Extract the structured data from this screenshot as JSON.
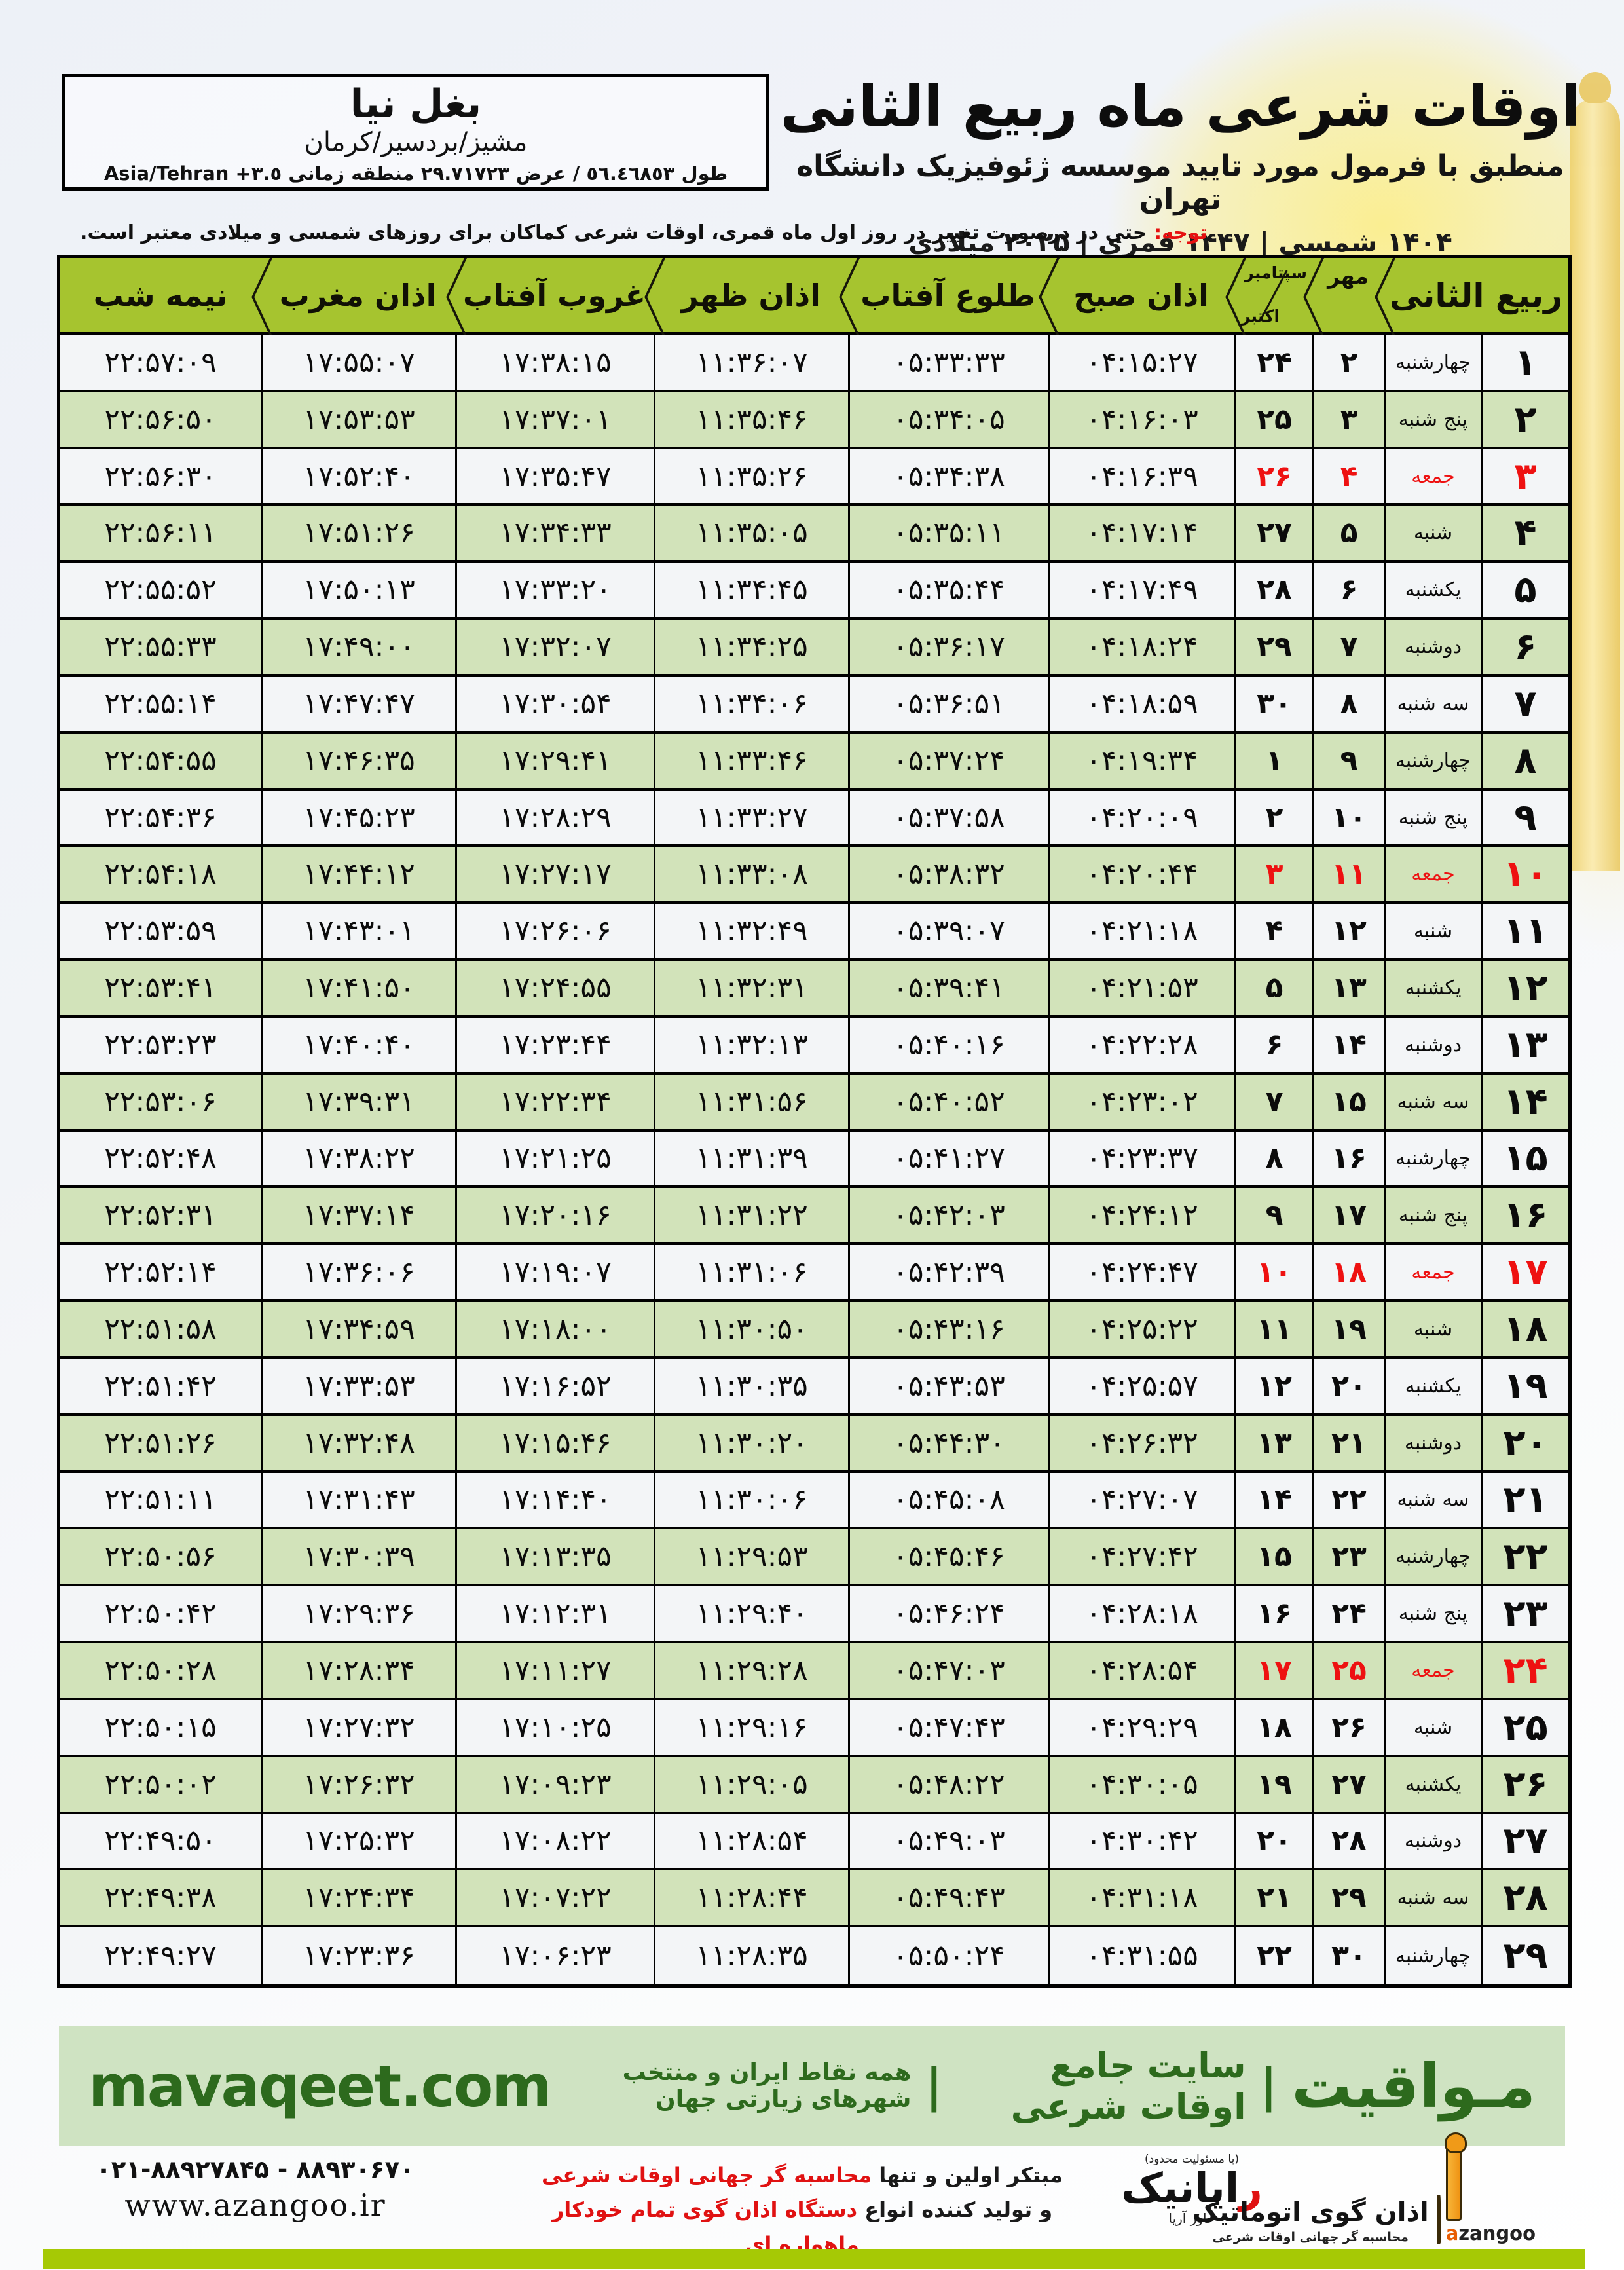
{
  "location_box": {
    "name": "بغل نیا",
    "region": "مشیز/بردسیر/کرمان",
    "coords_fa": "طول ٥٦.٤٦٨٥٣ / عرض ٢٩.٧١٧٢٣ منطقه زمانی ",
    "coords_tz": "Asia/Tehran +٣.٥"
  },
  "header": {
    "title": "اوقات شرعی ماه ربیع الثانی",
    "subtitle": "منطبق با فرمول مورد تایید موسسه ژئوفیزیک دانشگاه تهران",
    "dates": "۱۴۰۴ شمسی | ۱۴۴۷ قمری | ۲۰۲۵ میلادی"
  },
  "notice": {
    "label": "توجه:",
    "text": " حتی در درصورت تغییر در روز اول ماه قمری، اوقات شرعی کماکان برای روزهای شمسی و میلادی معتبر است."
  },
  "table": {
    "columns": {
      "rabi": "ربیع الثانی",
      "mehr": "مهر",
      "september": "سپتامبر",
      "october": "اکتبر",
      "fajr": "اذان صبح",
      "sunrise": "طلوع آفتاب",
      "dhuhr": "اذان ظهر",
      "sunset": "غروب آفتاب",
      "maghrib": "اذان مغرب",
      "midnight": "نیمه شب"
    },
    "rows": [
      {
        "d": "۱",
        "wd": "چهارشنبه",
        "mehr": "۲",
        "greg": "۲۴",
        "fajr": "۰۴:۱۵:۲۷",
        "sunrise": "۰۵:۳۳:۳۳",
        "dhuhr": "۱۱:۳۶:۰۷",
        "sunset": "۱۷:۳۸:۱۵",
        "maghrib": "۱۷:۵۵:۰۷",
        "mid": "۲۲:۵۷:۰۹",
        "fri": false
      },
      {
        "d": "۲",
        "wd": "پنج شنبه",
        "mehr": "۳",
        "greg": "۲۵",
        "fajr": "۰۴:۱۶:۰۳",
        "sunrise": "۰۵:۳۴:۰۵",
        "dhuhr": "۱۱:۳۵:۴۶",
        "sunset": "۱۷:۳۷:۰۱",
        "maghrib": "۱۷:۵۳:۵۳",
        "mid": "۲۲:۵۶:۵۰",
        "fri": false
      },
      {
        "d": "۳",
        "wd": "جمعه",
        "mehr": "۴",
        "greg": "۲۶",
        "fajr": "۰۴:۱۶:۳۹",
        "sunrise": "۰۵:۳۴:۳۸",
        "dhuhr": "۱۱:۳۵:۲۶",
        "sunset": "۱۷:۳۵:۴۷",
        "maghrib": "۱۷:۵۲:۴۰",
        "mid": "۲۲:۵۶:۳۰",
        "fri": true
      },
      {
        "d": "۴",
        "wd": "شنبه",
        "mehr": "۵",
        "greg": "۲۷",
        "fajr": "۰۴:۱۷:۱۴",
        "sunrise": "۰۵:۳۵:۱۱",
        "dhuhr": "۱۱:۳۵:۰۵",
        "sunset": "۱۷:۳۴:۳۳",
        "maghrib": "۱۷:۵۱:۲۶",
        "mid": "۲۲:۵۶:۱۱",
        "fri": false
      },
      {
        "d": "۵",
        "wd": "یکشنبه",
        "mehr": "۶",
        "greg": "۲۸",
        "fajr": "۰۴:۱۷:۴۹",
        "sunrise": "۰۵:۳۵:۴۴",
        "dhuhr": "۱۱:۳۴:۴۵",
        "sunset": "۱۷:۳۳:۲۰",
        "maghrib": "۱۷:۵۰:۱۳",
        "mid": "۲۲:۵۵:۵۲",
        "fri": false
      },
      {
        "d": "۶",
        "wd": "دوشنبه",
        "mehr": "۷",
        "greg": "۲۹",
        "fajr": "۰۴:۱۸:۲۴",
        "sunrise": "۰۵:۳۶:۱۷",
        "dhuhr": "۱۱:۳۴:۲۵",
        "sunset": "۱۷:۳۲:۰۷",
        "maghrib": "۱۷:۴۹:۰۰",
        "mid": "۲۲:۵۵:۳۳",
        "fri": false
      },
      {
        "d": "۷",
        "wd": "سه شنبه",
        "mehr": "۸",
        "greg": "۳۰",
        "fajr": "۰۴:۱۸:۵۹",
        "sunrise": "۰۵:۳۶:۵۱",
        "dhuhr": "۱۱:۳۴:۰۶",
        "sunset": "۱۷:۳۰:۵۴",
        "maghrib": "۱۷:۴۷:۴۷",
        "mid": "۲۲:۵۵:۱۴",
        "fri": false
      },
      {
        "d": "۸",
        "wd": "چهارشنبه",
        "mehr": "۹",
        "greg": "۱",
        "fajr": "۰۴:۱۹:۳۴",
        "sunrise": "۰۵:۳۷:۲۴",
        "dhuhr": "۱۱:۳۳:۴۶",
        "sunset": "۱۷:۲۹:۴۱",
        "maghrib": "۱۷:۴۶:۳۵",
        "mid": "۲۲:۵۴:۵۵",
        "fri": false
      },
      {
        "d": "۹",
        "wd": "پنج شنبه",
        "mehr": "۱۰",
        "greg": "۲",
        "fajr": "۰۴:۲۰:۰۹",
        "sunrise": "۰۵:۳۷:۵۸",
        "dhuhr": "۱۱:۳۳:۲۷",
        "sunset": "۱۷:۲۸:۲۹",
        "maghrib": "۱۷:۴۵:۲۳",
        "mid": "۲۲:۵۴:۳۶",
        "fri": false
      },
      {
        "d": "۱۰",
        "wd": "جمعه",
        "mehr": "۱۱",
        "greg": "۳",
        "fajr": "۰۴:۲۰:۴۴",
        "sunrise": "۰۵:۳۸:۳۲",
        "dhuhr": "۱۱:۳۳:۰۸",
        "sunset": "۱۷:۲۷:۱۷",
        "maghrib": "۱۷:۴۴:۱۲",
        "mid": "۲۲:۵۴:۱۸",
        "fri": true
      },
      {
        "d": "۱۱",
        "wd": "شنبه",
        "mehr": "۱۲",
        "greg": "۴",
        "fajr": "۰۴:۲۱:۱۸",
        "sunrise": "۰۵:۳۹:۰۷",
        "dhuhr": "۱۱:۳۲:۴۹",
        "sunset": "۱۷:۲۶:۰۶",
        "maghrib": "۱۷:۴۳:۰۱",
        "mid": "۲۲:۵۳:۵۹",
        "fri": false
      },
      {
        "d": "۱۲",
        "wd": "یکشنبه",
        "mehr": "۱۳",
        "greg": "۵",
        "fajr": "۰۴:۲۱:۵۳",
        "sunrise": "۰۵:۳۹:۴۱",
        "dhuhr": "۱۱:۳۲:۳۱",
        "sunset": "۱۷:۲۴:۵۵",
        "maghrib": "۱۷:۴۱:۵۰",
        "mid": "۲۲:۵۳:۴۱",
        "fri": false
      },
      {
        "d": "۱۳",
        "wd": "دوشنبه",
        "mehr": "۱۴",
        "greg": "۶",
        "fajr": "۰۴:۲۲:۲۸",
        "sunrise": "۰۵:۴۰:۱۶",
        "dhuhr": "۱۱:۳۲:۱۳",
        "sunset": "۱۷:۲۳:۴۴",
        "maghrib": "۱۷:۴۰:۴۰",
        "mid": "۲۲:۵۳:۲۳",
        "fri": false
      },
      {
        "d": "۱۴",
        "wd": "سه شنبه",
        "mehr": "۱۵",
        "greg": "۷",
        "fajr": "۰۴:۲۳:۰۲",
        "sunrise": "۰۵:۴۰:۵۲",
        "dhuhr": "۱۱:۳۱:۵۶",
        "sunset": "۱۷:۲۲:۳۴",
        "maghrib": "۱۷:۳۹:۳۱",
        "mid": "۲۲:۵۳:۰۶",
        "fri": false
      },
      {
        "d": "۱۵",
        "wd": "چهارشنبه",
        "mehr": "۱۶",
        "greg": "۸",
        "fajr": "۰۴:۲۳:۳۷",
        "sunrise": "۰۵:۴۱:۲۷",
        "dhuhr": "۱۱:۳۱:۳۹",
        "sunset": "۱۷:۲۱:۲۵",
        "maghrib": "۱۷:۳۸:۲۲",
        "mid": "۲۲:۵۲:۴۸",
        "fri": false
      },
      {
        "d": "۱۶",
        "wd": "پنج شنبه",
        "mehr": "۱۷",
        "greg": "۹",
        "fajr": "۰۴:۲۴:۱۲",
        "sunrise": "۰۵:۴۲:۰۳",
        "dhuhr": "۱۱:۳۱:۲۲",
        "sunset": "۱۷:۲۰:۱۶",
        "maghrib": "۱۷:۳۷:۱۴",
        "mid": "۲۲:۵۲:۳۱",
        "fri": false
      },
      {
        "d": "۱۷",
        "wd": "جمعه",
        "mehr": "۱۸",
        "greg": "۱۰",
        "fajr": "۰۴:۲۴:۴۷",
        "sunrise": "۰۵:۴۲:۳۹",
        "dhuhr": "۱۱:۳۱:۰۶",
        "sunset": "۱۷:۱۹:۰۷",
        "maghrib": "۱۷:۳۶:۰۶",
        "mid": "۲۲:۵۲:۱۴",
        "fri": true
      },
      {
        "d": "۱۸",
        "wd": "شنبه",
        "mehr": "۱۹",
        "greg": "۱۱",
        "fajr": "۰۴:۲۵:۲۲",
        "sunrise": "۰۵:۴۳:۱۶",
        "dhuhr": "۱۱:۳۰:۵۰",
        "sunset": "۱۷:۱۸:۰۰",
        "maghrib": "۱۷:۳۴:۵۹",
        "mid": "۲۲:۵۱:۵۸",
        "fri": false
      },
      {
        "d": "۱۹",
        "wd": "یکشنبه",
        "mehr": "۲۰",
        "greg": "۱۲",
        "fajr": "۰۴:۲۵:۵۷",
        "sunrise": "۰۵:۴۳:۵۳",
        "dhuhr": "۱۱:۳۰:۳۵",
        "sunset": "۱۷:۱۶:۵۲",
        "maghrib": "۱۷:۳۳:۵۳",
        "mid": "۲۲:۵۱:۴۲",
        "fri": false
      },
      {
        "d": "۲۰",
        "wd": "دوشنبه",
        "mehr": "۲۱",
        "greg": "۱۳",
        "fajr": "۰۴:۲۶:۳۲",
        "sunrise": "۰۵:۴۴:۳۰",
        "dhuhr": "۱۱:۳۰:۲۰",
        "sunset": "۱۷:۱۵:۴۶",
        "maghrib": "۱۷:۳۲:۴۸",
        "mid": "۲۲:۵۱:۲۶",
        "fri": false
      },
      {
        "d": "۲۱",
        "wd": "سه شنبه",
        "mehr": "۲۲",
        "greg": "۱۴",
        "fajr": "۰۴:۲۷:۰۷",
        "sunrise": "۰۵:۴۵:۰۸",
        "dhuhr": "۱۱:۳۰:۰۶",
        "sunset": "۱۷:۱۴:۴۰",
        "maghrib": "۱۷:۳۱:۴۳",
        "mid": "۲۲:۵۱:۱۱",
        "fri": false
      },
      {
        "d": "۲۲",
        "wd": "چهارشنبه",
        "mehr": "۲۳",
        "greg": "۱۵",
        "fajr": "۰۴:۲۷:۴۲",
        "sunrise": "۰۵:۴۵:۴۶",
        "dhuhr": "۱۱:۲۹:۵۳",
        "sunset": "۱۷:۱۳:۳۵",
        "maghrib": "۱۷:۳۰:۳۹",
        "mid": "۲۲:۵۰:۵۶",
        "fri": false
      },
      {
        "d": "۲۳",
        "wd": "پنج شنبه",
        "mehr": "۲۴",
        "greg": "۱۶",
        "fajr": "۰۴:۲۸:۱۸",
        "sunrise": "۰۵:۴۶:۲۴",
        "dhuhr": "۱۱:۲۹:۴۰",
        "sunset": "۱۷:۱۲:۳۱",
        "maghrib": "۱۷:۲۹:۳۶",
        "mid": "۲۲:۵۰:۴۲",
        "fri": false
      },
      {
        "d": "۲۴",
        "wd": "جمعه",
        "mehr": "۲۵",
        "greg": "۱۷",
        "fajr": "۰۴:۲۸:۵۴",
        "sunrise": "۰۵:۴۷:۰۳",
        "dhuhr": "۱۱:۲۹:۲۸",
        "sunset": "۱۷:۱۱:۲۷",
        "maghrib": "۱۷:۲۸:۳۴",
        "mid": "۲۲:۵۰:۲۸",
        "fri": true
      },
      {
        "d": "۲۵",
        "wd": "شنبه",
        "mehr": "۲۶",
        "greg": "۱۸",
        "fajr": "۰۴:۲۹:۲۹",
        "sunrise": "۰۵:۴۷:۴۳",
        "dhuhr": "۱۱:۲۹:۱۶",
        "sunset": "۱۷:۱۰:۲۵",
        "maghrib": "۱۷:۲۷:۳۲",
        "mid": "۲۲:۵۰:۱۵",
        "fri": false
      },
      {
        "d": "۲۶",
        "wd": "یکشنبه",
        "mehr": "۲۷",
        "greg": "۱۹",
        "fajr": "۰۴:۳۰:۰۵",
        "sunrise": "۰۵:۴۸:۲۲",
        "dhuhr": "۱۱:۲۹:۰۵",
        "sunset": "۱۷:۰۹:۲۳",
        "maghrib": "۱۷:۲۶:۳۲",
        "mid": "۲۲:۵۰:۰۲",
        "fri": false
      },
      {
        "d": "۲۷",
        "wd": "دوشنبه",
        "mehr": "۲۸",
        "greg": "۲۰",
        "fajr": "۰۴:۳۰:۴۲",
        "sunrise": "۰۵:۴۹:۰۳",
        "dhuhr": "۱۱:۲۸:۵۴",
        "sunset": "۱۷:۰۸:۲۲",
        "maghrib": "۱۷:۲۵:۳۲",
        "mid": "۲۲:۴۹:۵۰",
        "fri": false
      },
      {
        "d": "۲۸",
        "wd": "سه شنبه",
        "mehr": "۲۹",
        "greg": "۲۱",
        "fajr": "۰۴:۳۱:۱۸",
        "sunrise": "۰۵:۴۹:۴۳",
        "dhuhr": "۱۱:۲۸:۴۴",
        "sunset": "۱۷:۰۷:۲۲",
        "maghrib": "۱۷:۲۴:۳۴",
        "mid": "۲۲:۴۹:۳۸",
        "fri": false
      },
      {
        "d": "۲۹",
        "wd": "چهارشنبه",
        "mehr": "۳۰",
        "greg": "۲۲",
        "fajr": "۰۴:۳۱:۵۵",
        "sunrise": "۰۵:۵۰:۲۴",
        "dhuhr": "۱۱:۲۸:۳۵",
        "sunset": "۱۷:۰۶:۲۳",
        "maghrib": "۱۷:۲۳:۳۶",
        "mid": "۲۲:۴۹:۲۷",
        "fri": false
      }
    ]
  },
  "footer": {
    "site_fa": "مـواقیت",
    "bar": "|",
    "site_tag1": "سایت جامع اوقات شرعی",
    "site_tag2": "همه نقاط ایران و منتخب شهرهای زیارتی جهان",
    "site_url": "mavaqeet.com"
  },
  "bottom": {
    "phone": "۰۲۱-۸۸۹۲۷۸۴۵ - ۸۸۹۳۰۶۷۰",
    "url": "www.azangoo.ir",
    "line1_black": "مبتکر اولین و تنها ",
    "line1_red": "محاسبه گر جهانی اوقات شرعی",
    "line2_black": "و تولید کننده انواع ",
    "line2_red": "دستگاه اذان گوی تمام خودکار ماهواره ای",
    "rayanik_top": "(با مسئولیت محدود)",
    "rayanik_initial": "ر",
    "rayanik_rest": "ایانیک",
    "rayanik_side": "خاور آریا",
    "azangoo_title": "اذان گوی اتوماتیک",
    "azangoo_sub": "محاسبه گر جهانی اوقات شرعی",
    "azangoo_latin_a": "a",
    "azangoo_latin_rest": "zangoo"
  },
  "colors": {
    "header_green": "#a6c42f",
    "row_green": "#d2e3ba",
    "friday_red": "#ee1111",
    "band_green_bg": "#cfe3c2",
    "band_green_text": "#2d6a1d",
    "lime_bar": "#a6c905",
    "azangoo_orange": "#f09a18"
  }
}
